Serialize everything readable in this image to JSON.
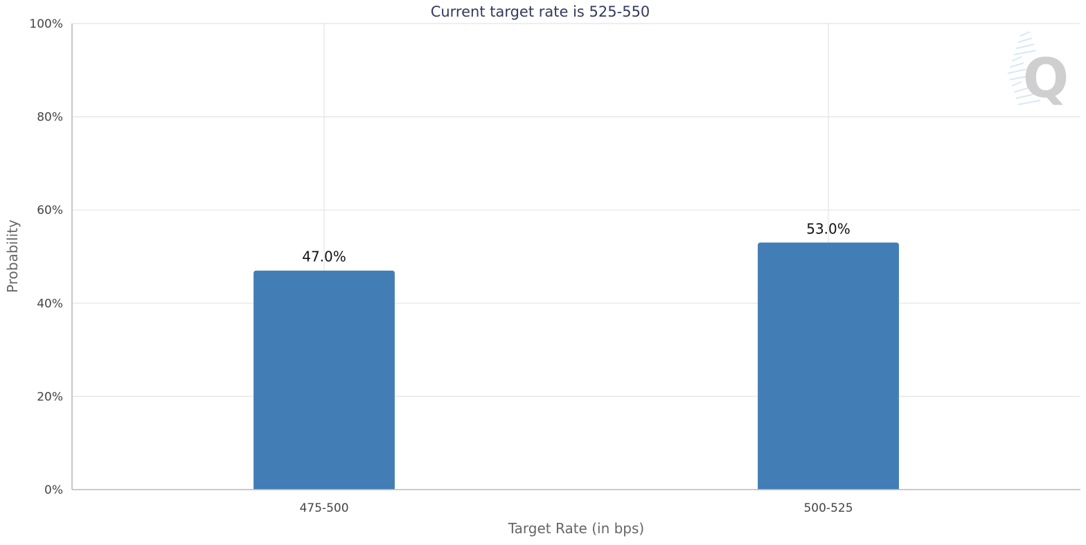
{
  "chart_data": {
    "type": "bar",
    "title": "Current target rate is 525-550",
    "xlabel": "Target Rate (in bps)",
    "ylabel": "Probability",
    "categories": [
      "475-500",
      "500-525"
    ],
    "values": [
      47.0,
      53.0
    ],
    "data_labels": [
      "47.0%",
      "53.0%"
    ],
    "ylim": [
      0,
      100
    ],
    "yticks": [
      0,
      20,
      40,
      60,
      80,
      100
    ],
    "ytick_labels": [
      "0%",
      "20%",
      "40%",
      "60%",
      "80%",
      "100%"
    ],
    "grid": true,
    "bar_color": "#427eb5",
    "watermark": "Q"
  }
}
